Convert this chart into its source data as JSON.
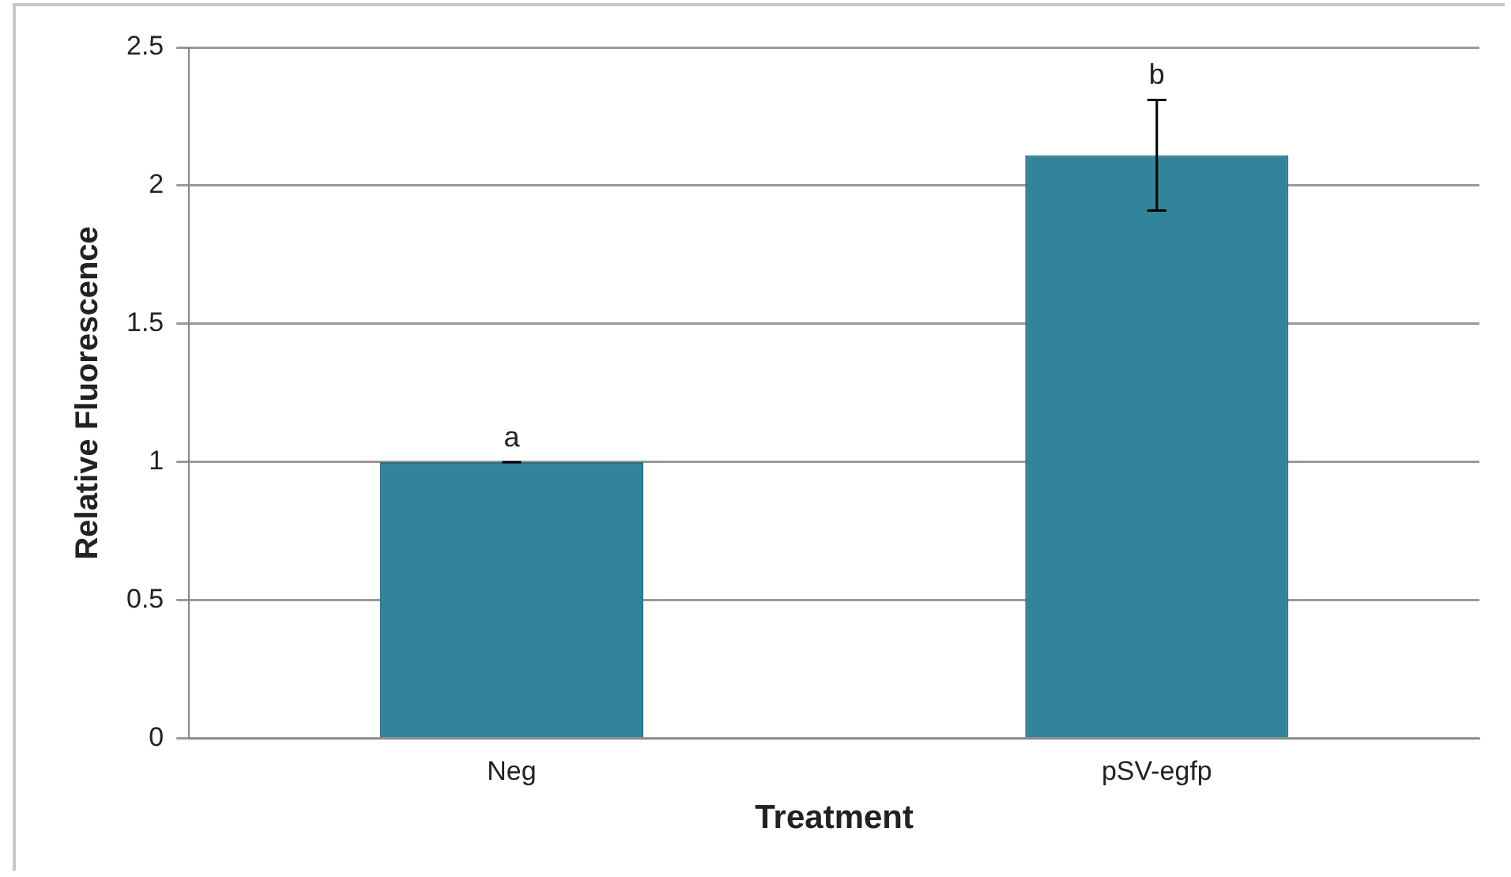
{
  "chart_data": {
    "type": "bar",
    "xlabel": "Treatment",
    "ylabel": "Relative Fluorescence",
    "categories": [
      "Neg",
      "pSV-egfp"
    ],
    "series": [
      {
        "color": "#31849b",
        "values": [
          1,
          2.11
        ],
        "errors": [
          0,
          0.2
        ]
      }
    ],
    "annotations": [
      {
        "text": "a",
        "x": "Neg",
        "y": 1
      },
      {
        "text": "b",
        "x": "pSV-egfp",
        "y": 2.31
      }
    ],
    "ylim": [
      0,
      2.5
    ],
    "yticks": [
      0,
      0.5,
      1,
      1.5,
      2,
      2.5
    ],
    "grid": "y",
    "legend": false
  }
}
